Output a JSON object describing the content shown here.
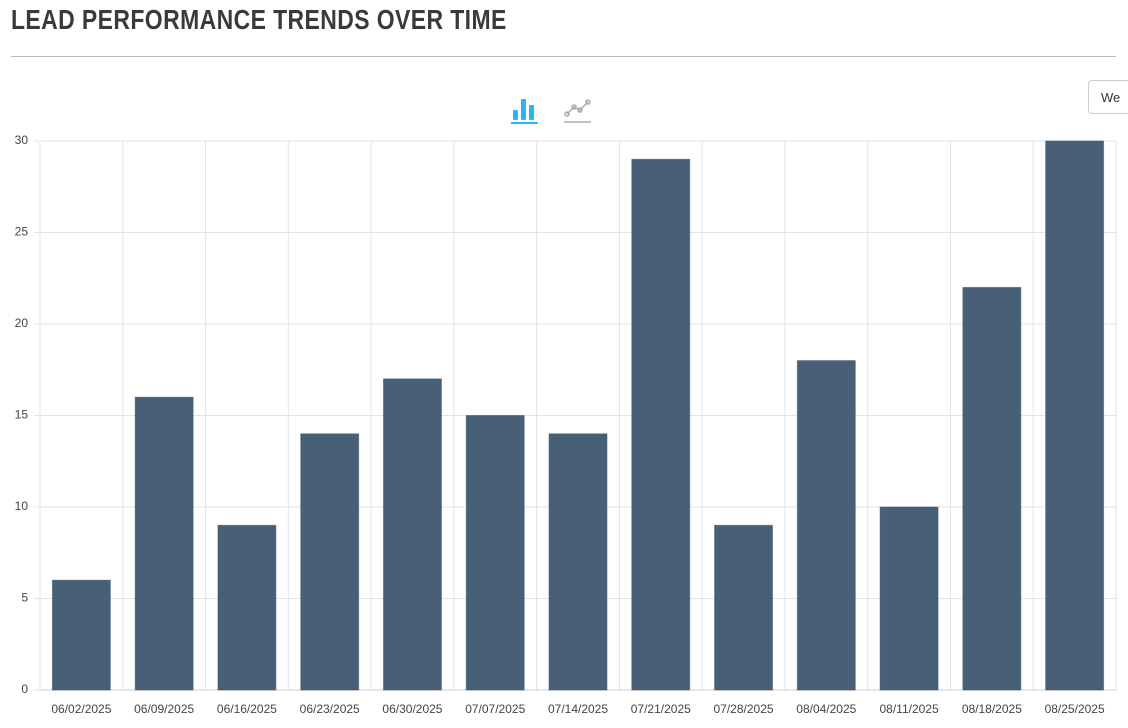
{
  "header": {
    "title": "LEAD PERFORMANCE TRENDS OVER TIME"
  },
  "dropdown": {
    "label": "We"
  },
  "chart_data": {
    "type": "bar",
    "categories": [
      "06/02/2025",
      "06/09/2025",
      "06/16/2025",
      "06/23/2025",
      "06/30/2025",
      "07/07/2025",
      "07/14/2025",
      "07/21/2025",
      "07/28/2025",
      "08/04/2025",
      "08/11/2025",
      "08/18/2025",
      "08/25/2025"
    ],
    "values": [
      6,
      16,
      9,
      14,
      17,
      15,
      14,
      29,
      9,
      18,
      10,
      22,
      30
    ],
    "color": "#485f78",
    "ylim": [
      0,
      30
    ],
    "yticks": [
      0,
      5,
      10,
      15,
      20,
      25,
      30
    ],
    "grid": true
  }
}
